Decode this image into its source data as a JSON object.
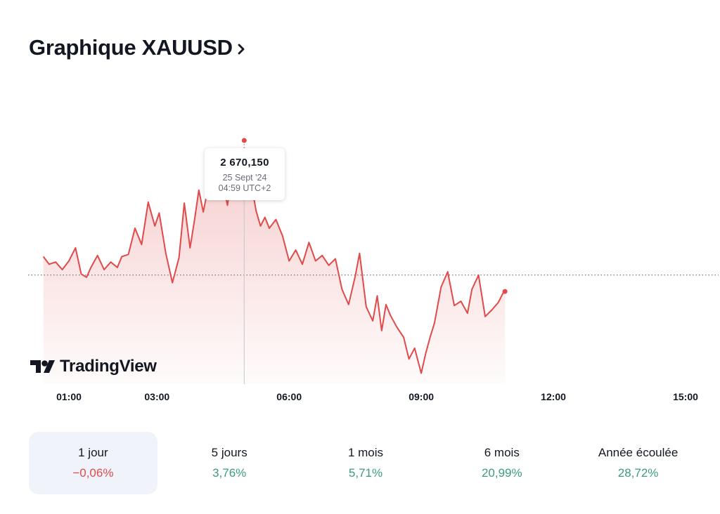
{
  "header": {
    "title": "Graphique XAUUSD"
  },
  "tooltip": {
    "price": "2 670,150",
    "date": "25 Sept '24",
    "time": "04:59 UTC+2"
  },
  "brand": {
    "name": "TradingView"
  },
  "colors": {
    "line": "#e04a4a",
    "negative": "#e04a4a",
    "positive": "#3c9e77",
    "active_bg": "#f0f3fa"
  },
  "periods": [
    {
      "label": "1 jour",
      "value": "−0,06%",
      "trend": "negative",
      "active": true
    },
    {
      "label": "5 jours",
      "value": "3,76%",
      "trend": "positive",
      "active": false
    },
    {
      "label": "1 mois",
      "value": "5,71%",
      "trend": "positive",
      "active": false
    },
    {
      "label": "6 mois",
      "value": "20,99%",
      "trend": "positive",
      "active": false
    },
    {
      "label": "Année écoulée",
      "value": "28,72%",
      "trend": "positive",
      "active": false
    }
  ],
  "chart_data": {
    "type": "line",
    "x_ticks": [
      "01:00",
      "03:00",
      "06:00",
      "09:00",
      "12:00",
      "15:00"
    ],
    "x_range_hours": [
      0.42,
      15.0
    ],
    "y_range": [
      2648.5,
      2671.5
    ],
    "reference_line": 2658.5,
    "highlight": {
      "x": 4.98,
      "y": 2670.15
    },
    "series": [
      {
        "x": [
          0.42,
          0.55,
          0.7,
          0.85,
          1.0,
          1.15,
          1.28,
          1.4,
          1.5,
          1.65,
          1.8,
          1.95,
          2.1,
          2.2,
          2.35,
          2.5,
          2.65,
          2.8,
          2.95,
          3.05,
          3.2,
          3.35,
          3.5,
          3.62,
          3.75,
          3.85,
          3.95,
          4.05,
          4.2,
          4.3,
          4.45,
          4.6,
          4.75,
          4.85,
          4.98,
          5.05,
          5.15,
          5.25,
          5.35,
          5.45,
          5.55,
          5.7,
          5.85,
          6.0,
          6.15,
          6.3,
          6.45,
          6.6,
          6.75,
          6.9,
          7.05,
          7.2,
          7.35,
          7.5,
          7.6,
          7.75,
          7.9,
          8.0,
          8.1,
          8.2,
          8.3,
          8.45,
          8.6,
          8.72,
          8.85,
          9.0,
          9.1,
          9.2,
          9.3,
          9.45,
          9.6,
          9.75,
          9.9,
          10.05,
          10.15,
          10.3,
          10.45,
          10.6,
          10.75,
          10.85,
          10.9
        ],
        "y": [
          2660.2,
          2659.5,
          2659.7,
          2659.0,
          2659.8,
          2661.0,
          2658.6,
          2658.3,
          2659.2,
          2660.3,
          2659.0,
          2659.7,
          2659.2,
          2660.2,
          2660.4,
          2662.8,
          2661.3,
          2665.2,
          2663.0,
          2664.2,
          2660.5,
          2657.8,
          2660.1,
          2665.1,
          2661.0,
          2663.5,
          2666.3,
          2664.3,
          2667.3,
          2666.0,
          2667.8,
          2664.9,
          2669.3,
          2667.2,
          2670.15,
          2669.0,
          2666.7,
          2664.4,
          2663.0,
          2663.8,
          2662.8,
          2663.6,
          2662.1,
          2659.8,
          2660.8,
          2659.5,
          2661.5,
          2659.8,
          2660.3,
          2659.4,
          2660.0,
          2657.2,
          2655.8,
          2658.4,
          2660.5,
          2655.6,
          2654.3,
          2656.6,
          2653.4,
          2655.8,
          2654.8,
          2653.7,
          2652.8,
          2650.8,
          2651.8,
          2649.5,
          2651.3,
          2652.8,
          2654.1,
          2657.4,
          2658.8,
          2655.7,
          2656.1,
          2655.0,
          2657.2,
          2658.5,
          2654.7,
          2655.3,
          2656.0,
          2656.8,
          2657.0
        ]
      }
    ]
  }
}
